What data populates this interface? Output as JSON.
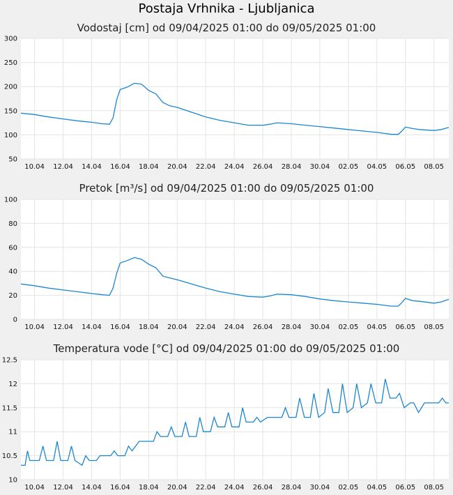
{
  "page": {
    "title": "Postaja Vrhnika - Ljubljanica"
  },
  "colors": {
    "series": "#1a86d0",
    "plot_background": "#ffffff",
    "page_background": "#f0f0f0",
    "grid": "#e4e4e4"
  },
  "chart_data": [
    {
      "type": "line",
      "title": "Vodostaj [cm] od 09/04/2025 01:00 do 09/05/2025 01:00",
      "xlabel": "",
      "ylabel": "",
      "xlim": [
        "2025-04-09T01:00",
        "2025-05-09T01:00"
      ],
      "ylim": [
        50,
        300
      ],
      "yticks": [
        50,
        100,
        150,
        200,
        250,
        300
      ],
      "xticks": [
        "2025-04-10",
        "2025-04-12",
        "2025-04-14",
        "2025-04-16",
        "2025-04-18",
        "2025-04-20",
        "2025-04-22",
        "2025-04-24",
        "2025-04-26",
        "2025-04-28",
        "2025-04-30",
        "2025-05-02",
        "2025-05-04",
        "2025-05-06",
        "2025-05-08"
      ],
      "xticklabels": [
        "10.04",
        "12.04",
        "14.04",
        "16.04",
        "18.04",
        "20.04",
        "22.04",
        "24.04",
        "26.04",
        "28.04",
        "30.04",
        "02.05",
        "04.05",
        "06.05",
        "08.05"
      ],
      "grid": true,
      "series": [
        {
          "points": [
            [
              "2025-04-09T01:00",
              145
            ],
            [
              "2025-04-10T00:00",
              142
            ],
            [
              "2025-04-11T00:00",
              137
            ],
            [
              "2025-04-12T00:00",
              133
            ],
            [
              "2025-04-13T00:00",
              129
            ],
            [
              "2025-04-14T00:00",
              126
            ],
            [
              "2025-04-14T18:00",
              123
            ],
            [
              "2025-04-15T06:00",
              122
            ],
            [
              "2025-04-15T12:00",
              135
            ],
            [
              "2025-04-15T18:00",
              172
            ],
            [
              "2025-04-16T00:00",
              194
            ],
            [
              "2025-04-16T12:00",
              199
            ],
            [
              "2025-04-17T00:00",
              207
            ],
            [
              "2025-04-17T12:00",
              205
            ],
            [
              "2025-04-18T00:00",
              192
            ],
            [
              "2025-04-18T12:00",
              185
            ],
            [
              "2025-04-19T00:00",
              167
            ],
            [
              "2025-04-19T12:00",
              160
            ],
            [
              "2025-04-20T00:00",
              157
            ],
            [
              "2025-04-21T00:00",
              147
            ],
            [
              "2025-04-22T00:00",
              137
            ],
            [
              "2025-04-23T00:00",
              130
            ],
            [
              "2025-04-24T00:00",
              125
            ],
            [
              "2025-04-25T00:00",
              120
            ],
            [
              "2025-04-26T00:00",
              120
            ],
            [
              "2025-04-26T12:00",
              122
            ],
            [
              "2025-04-27T00:00",
              125
            ],
            [
              "2025-04-28T00:00",
              123
            ],
            [
              "2025-04-29T00:00",
              120
            ],
            [
              "2025-04-30T00:00",
              117
            ],
            [
              "2025-05-01T00:00",
              114
            ],
            [
              "2025-05-02T00:00",
              111
            ],
            [
              "2025-05-03T00:00",
              108
            ],
            [
              "2025-05-04T00:00",
              105
            ],
            [
              "2025-05-05T00:00",
              101
            ],
            [
              "2025-05-05T12:00",
              101
            ],
            [
              "2025-05-05T18:00",
              108
            ],
            [
              "2025-05-06T00:00",
              116
            ],
            [
              "2025-05-06T12:00",
              113
            ],
            [
              "2025-05-07T00:00",
              111
            ],
            [
              "2025-05-08T00:00",
              109
            ],
            [
              "2025-05-08T12:00",
              111
            ],
            [
              "2025-05-09T00:00",
              115
            ],
            [
              "2025-05-09T01:00",
              115
            ]
          ]
        }
      ]
    },
    {
      "type": "line",
      "title": "Pretok [m³/s] od 09/04/2025 01:00 do 09/05/2025 01:00",
      "xlabel": "",
      "ylabel": "",
      "xlim": [
        "2025-04-09T01:00",
        "2025-05-09T01:00"
      ],
      "ylim": [
        0,
        100
      ],
      "yticks": [
        0,
        20,
        40,
        60,
        80,
        100
      ],
      "xticks": [
        "2025-04-10",
        "2025-04-12",
        "2025-04-14",
        "2025-04-16",
        "2025-04-18",
        "2025-04-20",
        "2025-04-22",
        "2025-04-24",
        "2025-04-26",
        "2025-04-28",
        "2025-04-30",
        "2025-05-02",
        "2025-05-04",
        "2025-05-06",
        "2025-05-08"
      ],
      "xticklabels": [
        "10.04",
        "12.04",
        "14.04",
        "16.04",
        "18.04",
        "20.04",
        "22.04",
        "24.04",
        "26.04",
        "28.04",
        "30.04",
        "02.05",
        "04.05",
        "06.05",
        "08.05"
      ],
      "grid": true,
      "series": [
        {
          "points": [
            [
              "2025-04-09T01:00",
              29.5
            ],
            [
              "2025-04-10T00:00",
              28
            ],
            [
              "2025-04-11T00:00",
              26
            ],
            [
              "2025-04-12T00:00",
              24.5
            ],
            [
              "2025-04-13T00:00",
              23
            ],
            [
              "2025-04-14T00:00",
              21.5
            ],
            [
              "2025-04-14T18:00",
              20.5
            ],
            [
              "2025-04-15T06:00",
              20
            ],
            [
              "2025-04-15T12:00",
              26
            ],
            [
              "2025-04-15T18:00",
              38
            ],
            [
              "2025-04-16T00:00",
              47
            ],
            [
              "2025-04-16T12:00",
              49
            ],
            [
              "2025-04-17T00:00",
              51.5
            ],
            [
              "2025-04-17T12:00",
              50
            ],
            [
              "2025-04-18T00:00",
              46
            ],
            [
              "2025-04-18T12:00",
              43
            ],
            [
              "2025-04-19T00:00",
              36
            ],
            [
              "2025-04-19T12:00",
              34.5
            ],
            [
              "2025-04-20T00:00",
              33
            ],
            [
              "2025-04-21T00:00",
              29.5
            ],
            [
              "2025-04-22T00:00",
              26
            ],
            [
              "2025-04-23T00:00",
              23
            ],
            [
              "2025-04-24T00:00",
              21
            ],
            [
              "2025-04-25T00:00",
              19
            ],
            [
              "2025-04-26T00:00",
              18.5
            ],
            [
              "2025-04-26T12:00",
              19.5
            ],
            [
              "2025-04-27T00:00",
              21
            ],
            [
              "2025-04-28T00:00",
              20.5
            ],
            [
              "2025-04-29T00:00",
              19
            ],
            [
              "2025-04-30T00:00",
              17
            ],
            [
              "2025-05-01T00:00",
              15.5
            ],
            [
              "2025-05-02T00:00",
              14.5
            ],
            [
              "2025-05-03T00:00",
              13.5
            ],
            [
              "2025-05-04T00:00",
              12.5
            ],
            [
              "2025-05-05T00:00",
              11
            ],
            [
              "2025-05-05T12:00",
              11
            ],
            [
              "2025-05-05T18:00",
              14
            ],
            [
              "2025-05-06T00:00",
              17.5
            ],
            [
              "2025-05-06T12:00",
              15.5
            ],
            [
              "2025-05-07T00:00",
              15
            ],
            [
              "2025-05-08T00:00",
              13.5
            ],
            [
              "2025-05-08T12:00",
              14.5
            ],
            [
              "2025-05-09T00:00",
              16.5
            ],
            [
              "2025-05-09T01:00",
              16.5
            ]
          ]
        }
      ]
    },
    {
      "type": "line",
      "title": "Temperatura vode [°C] od 09/04/2025 01:00 do 09/05/2025 01:00",
      "xlabel": "",
      "ylabel": "",
      "xlim": [
        "2025-04-09T01:00",
        "2025-05-09T01:00"
      ],
      "ylim": [
        10,
        12.5
      ],
      "yticks": [
        10,
        10.5,
        11,
        11.5,
        12,
        12.5
      ],
      "xticks": [
        "2025-04-10",
        "2025-04-12",
        "2025-04-14",
        "2025-04-16",
        "2025-04-18",
        "2025-04-20",
        "2025-04-22",
        "2025-04-24",
        "2025-04-26",
        "2025-04-28",
        "2025-04-30",
        "2025-05-02",
        "2025-05-04",
        "2025-05-06",
        "2025-05-08"
      ],
      "xticklabels": [
        "10.04",
        "12.04",
        "14.04",
        "16.04",
        "18.04",
        "20.04",
        "22.04",
        "24.04",
        "26.04",
        "28.04",
        "30.04",
        "02.05",
        "04.05",
        "06.05",
        "08.05"
      ],
      "grid": true,
      "series": [
        {
          "points": [
            [
              "2025-04-09T01:00",
              10.3
            ],
            [
              "2025-04-09T08:00",
              10.3
            ],
            [
              "2025-04-09T12:00",
              10.6
            ],
            [
              "2025-04-09T16:00",
              10.4
            ],
            [
              "2025-04-10T08:00",
              10.4
            ],
            [
              "2025-04-10T14:00",
              10.7
            ],
            [
              "2025-04-10T20:00",
              10.4
            ],
            [
              "2025-04-11T08:00",
              10.4
            ],
            [
              "2025-04-11T14:00",
              10.8
            ],
            [
              "2025-04-11T20:00",
              10.4
            ],
            [
              "2025-04-12T08:00",
              10.4
            ],
            [
              "2025-04-12T14:00",
              10.7
            ],
            [
              "2025-04-12T20:00",
              10.4
            ],
            [
              "2025-04-13T08:00",
              10.3
            ],
            [
              "2025-04-13T14:00",
              10.5
            ],
            [
              "2025-04-13T20:00",
              10.4
            ],
            [
              "2025-04-14T08:00",
              10.4
            ],
            [
              "2025-04-14T14:00",
              10.5
            ],
            [
              "2025-04-15T08:00",
              10.5
            ],
            [
              "2025-04-15T14:00",
              10.6
            ],
            [
              "2025-04-15T20:00",
              10.5
            ],
            [
              "2025-04-16T08:00",
              10.5
            ],
            [
              "2025-04-16T14:00",
              10.7
            ],
            [
              "2025-04-16T20:00",
              10.6
            ],
            [
              "2025-04-17T08:00",
              10.8
            ],
            [
              "2025-04-18T08:00",
              10.8
            ],
            [
              "2025-04-18T14:00",
              11.0
            ],
            [
              "2025-04-18T20:00",
              10.9
            ],
            [
              "2025-04-19T08:00",
              10.9
            ],
            [
              "2025-04-19T14:00",
              11.1
            ],
            [
              "2025-04-19T20:00",
              10.9
            ],
            [
              "2025-04-20T08:00",
              10.9
            ],
            [
              "2025-04-20T14:00",
              11.2
            ],
            [
              "2025-04-20T20:00",
              10.9
            ],
            [
              "2025-04-21T08:00",
              10.9
            ],
            [
              "2025-04-21T14:00",
              11.3
            ],
            [
              "2025-04-21T20:00",
              11.0
            ],
            [
              "2025-04-22T08:00",
              11.0
            ],
            [
              "2025-04-22T14:00",
              11.3
            ],
            [
              "2025-04-22T20:00",
              11.1
            ],
            [
              "2025-04-23T08:00",
              11.1
            ],
            [
              "2025-04-23T14:00",
              11.4
            ],
            [
              "2025-04-23T20:00",
              11.1
            ],
            [
              "2025-04-24T08:00",
              11.1
            ],
            [
              "2025-04-24T14:00",
              11.5
            ],
            [
              "2025-04-24T20:00",
              11.2
            ],
            [
              "2025-04-25T08:00",
              11.2
            ],
            [
              "2025-04-25T14:00",
              11.3
            ],
            [
              "2025-04-25T20:00",
              11.2
            ],
            [
              "2025-04-26T08:00",
              11.3
            ],
            [
              "2025-04-27T08:00",
              11.3
            ],
            [
              "2025-04-27T14:00",
              11.5
            ],
            [
              "2025-04-27T20:00",
              11.3
            ],
            [
              "2025-04-28T08:00",
              11.3
            ],
            [
              "2025-04-28T14:00",
              11.7
            ],
            [
              "2025-04-28T22:00",
              11.3
            ],
            [
              "2025-04-29T08:00",
              11.3
            ],
            [
              "2025-04-29T14:00",
              11.8
            ],
            [
              "2025-04-29T22:00",
              11.3
            ],
            [
              "2025-04-30T08:00",
              11.4
            ],
            [
              "2025-04-30T14:00",
              11.9
            ],
            [
              "2025-04-30T22:00",
              11.4
            ],
            [
              "2025-05-01T08:00",
              11.4
            ],
            [
              "2025-05-01T14:00",
              12.0
            ],
            [
              "2025-05-01T22:00",
              11.4
            ],
            [
              "2025-05-02T08:00",
              11.5
            ],
            [
              "2025-05-02T14:00",
              12.0
            ],
            [
              "2025-05-02T22:00",
              11.5
            ],
            [
              "2025-05-03T08:00",
              11.6
            ],
            [
              "2025-05-03T14:00",
              12.0
            ],
            [
              "2025-05-03T22:00",
              11.6
            ],
            [
              "2025-05-04T08:00",
              11.6
            ],
            [
              "2025-05-04T14:00",
              12.1
            ],
            [
              "2025-05-04T22:00",
              11.7
            ],
            [
              "2025-05-05T08:00",
              11.7
            ],
            [
              "2025-05-05T14:00",
              11.8
            ],
            [
              "2025-05-05T22:00",
              11.5
            ],
            [
              "2025-05-06T08:00",
              11.6
            ],
            [
              "2025-05-06T14:00",
              11.6
            ],
            [
              "2025-05-06T22:00",
              11.4
            ],
            [
              "2025-05-07T08:00",
              11.6
            ],
            [
              "2025-05-08T08:00",
              11.6
            ],
            [
              "2025-05-08T14:00",
              11.7
            ],
            [
              "2025-05-08T20:00",
              11.6
            ],
            [
              "2025-05-09T01:00",
              11.6
            ]
          ]
        }
      ]
    }
  ]
}
